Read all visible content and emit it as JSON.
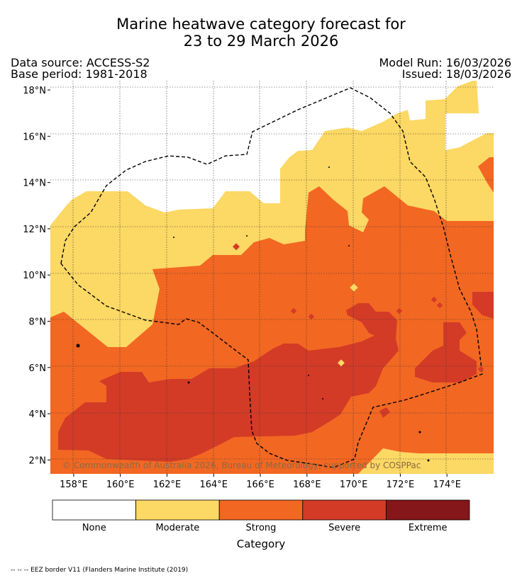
{
  "title_line1": "Marine heatwave category forecast for",
  "title_line2": "23 to 29 March 2026",
  "meta": {
    "data_source": "Data source: ACCESS-S2",
    "base_period": "Base period: 1981-2018",
    "model_run": "Model Run: 16/03/2026",
    "issued": "Issued: 18/03/2026"
  },
  "map": {
    "lon_range": [
      157,
      176
    ],
    "lat_range": [
      1.4,
      18.4
    ],
    "lon_ticks": [
      {
        "value": 158,
        "label": "158°E"
      },
      {
        "value": 160,
        "label": "160°E"
      },
      {
        "value": 162,
        "label": "162°E"
      },
      {
        "value": 164,
        "label": "164°E"
      },
      {
        "value": 166,
        "label": "166°E"
      },
      {
        "value": 168,
        "label": "168°E"
      },
      {
        "value": 170,
        "label": "170°E"
      },
      {
        "value": 172,
        "label": "172°E"
      },
      {
        "value": 174,
        "label": "174°E"
      }
    ],
    "lat_ticks": [
      {
        "value": 2,
        "label": "2°N"
      },
      {
        "value": 4,
        "label": "4°N"
      },
      {
        "value": 6,
        "label": "6°N"
      },
      {
        "value": 8,
        "label": "8°N"
      },
      {
        "value": 10,
        "label": "10°N"
      },
      {
        "value": 12,
        "label": "12°N"
      },
      {
        "value": 14,
        "label": "14°N"
      },
      {
        "value": 16,
        "label": "16°N"
      },
      {
        "value": 18,
        "label": "18°N"
      }
    ],
    "copyright": "© Commonwealth of Australia 2026, Bureau of Meteorology, supported by COSPPac",
    "colors": {
      "none": "#ffffff",
      "moderate": "#fcd864",
      "strong": "#f26722",
      "severe": "#d33b27",
      "extreme": "#851619"
    }
  },
  "colorbar": {
    "categories": [
      {
        "label": "None",
        "color": "#ffffff"
      },
      {
        "label": "Moderate",
        "color": "#fcd864"
      },
      {
        "label": "Strong",
        "color": "#f26722"
      },
      {
        "label": "Severe",
        "color": "#d33b27"
      },
      {
        "label": "Extreme",
        "color": "#851619"
      }
    ],
    "title": "Category"
  },
  "footnote": "-- -- -- EEZ border V11 (Flanders Marine Institute (2019)"
}
